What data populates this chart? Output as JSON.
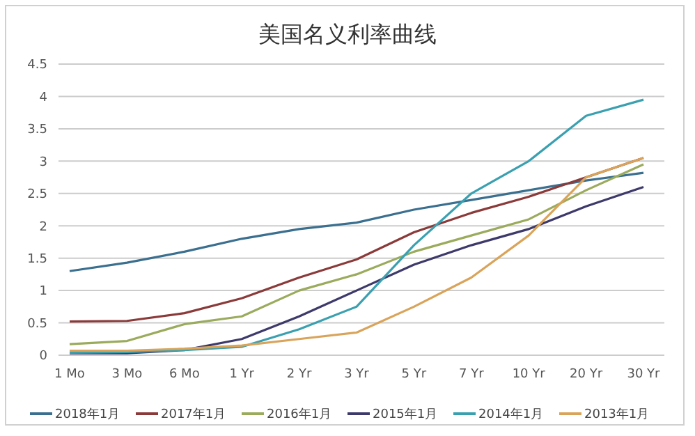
{
  "chart_data": {
    "type": "line",
    "title": "美国名义利率曲线",
    "categories": [
      "1 Mo",
      "3 Mo",
      "6 Mo",
      "1 Yr",
      "2 Yr",
      "3 Yr",
      "5 Yr",
      "7 Yr",
      "10 Yr",
      "20 Yr",
      "30 Yr"
    ],
    "series": [
      {
        "name": "2018年1月",
        "color": "#3a6f8f",
        "values": [
          1.3,
          1.43,
          1.6,
          1.8,
          1.95,
          2.05,
          2.25,
          2.4,
          2.55,
          2.7,
          2.82
        ]
      },
      {
        "name": "2017年1月",
        "color": "#8b3a3a",
        "values": [
          0.52,
          0.53,
          0.65,
          0.88,
          1.2,
          1.48,
          1.9,
          2.2,
          2.45,
          2.75,
          3.05
        ]
      },
      {
        "name": "2016年1月",
        "color": "#9aab5c",
        "values": [
          0.17,
          0.22,
          0.48,
          0.6,
          1.0,
          1.25,
          1.6,
          1.85,
          2.1,
          2.55,
          2.95
        ]
      },
      {
        "name": "2015年1月",
        "color": "#3d3a6b",
        "values": [
          0.03,
          0.03,
          0.08,
          0.25,
          0.6,
          1.0,
          1.4,
          1.7,
          1.95,
          2.3,
          2.6
        ]
      },
      {
        "name": "2014年1月",
        "color": "#3aa0b0",
        "values": [
          0.04,
          0.05,
          0.08,
          0.13,
          0.4,
          0.75,
          1.7,
          2.5,
          3.0,
          3.7,
          3.95
        ]
      },
      {
        "name": "2013年1月",
        "color": "#d9a45a",
        "values": [
          0.07,
          0.07,
          0.1,
          0.15,
          0.25,
          0.35,
          0.75,
          1.2,
          1.85,
          2.75,
          3.05
        ]
      }
    ],
    "ylim": [
      0,
      4.5
    ],
    "yticks": [
      0,
      0.5,
      1,
      1.5,
      2,
      2.5,
      3,
      3.5,
      4,
      4.5
    ],
    "grid": "y",
    "legend": "bottom",
    "marker": "none",
    "line_style": "solid"
  }
}
